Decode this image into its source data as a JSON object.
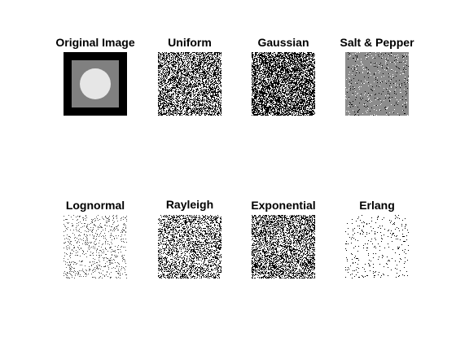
{
  "figure": {
    "panels": [
      {
        "title": "Original Image",
        "image": "original-square-circle",
        "noise_density": 0.0
      },
      {
        "title": "Uniform",
        "image": "uniform-noise",
        "noise_density": 0.5
      },
      {
        "title": "Gaussian",
        "image": "gaussian-noise",
        "noise_density": 0.62
      },
      {
        "title": "Salt & Pepper",
        "image": "salt-and-pepper-noise",
        "noise_density": 0.08
      },
      {
        "title": "Lognormal",
        "image": "lognormal-noise",
        "noise_density": 0.12
      },
      {
        "title": "Rayleigh",
        "image": "rayleigh-noise",
        "noise_density": 0.35
      },
      {
        "title": "Exponential",
        "image": "exponential-noise",
        "noise_density": 0.45
      },
      {
        "title": "Erlang",
        "image": "erlang-noise",
        "noise_density": 0.05
      }
    ],
    "colors": {
      "background": "#ffffff",
      "original_outer": "#000000",
      "original_middle": "#808080",
      "original_circle": "#e6e6e6",
      "saltpepper_base": "#8c8c8c"
    }
  }
}
